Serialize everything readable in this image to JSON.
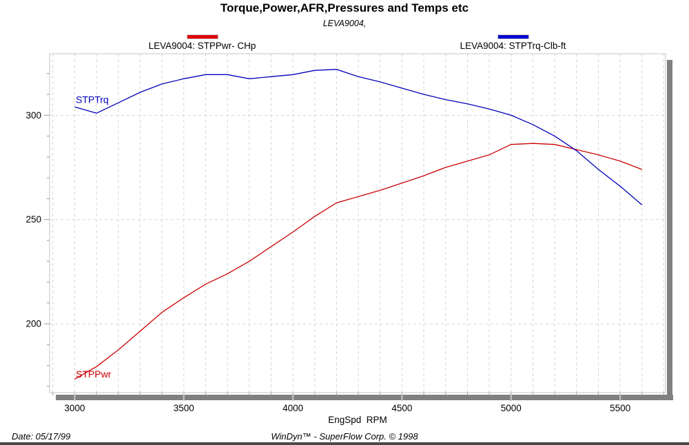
{
  "header": {
    "title": "Torque,Power,AFR,Pressures and Temps etc",
    "subtitle": "LEVA9004,"
  },
  "legend": {
    "items": [
      {
        "id": "power",
        "label": "LEVA9004: STPPwr- CHp",
        "swatch_color": "#dd0000"
      },
      {
        "id": "torque",
        "label": "LEVA9004: STPTrq-Clb-ft",
        "swatch_color": "#0000cc"
      }
    ]
  },
  "footer": {
    "date": "Date: 05/17/99",
    "brand": "WinDyn™ - SuperFlow Corp. © 1998"
  },
  "chart_data": {
    "type": "line",
    "title": "Torque,Power,AFR,Pressures and Temps etc",
    "subtitle": "LEVA9004,",
    "xlabel": "EngSpd  RPM",
    "ylabel": "",
    "x_range": [
      2885,
      5708
    ],
    "y_range": [
      167,
      329.5
    ],
    "x_major_ticks": [
      3000,
      3500,
      4000,
      4500,
      5000,
      5500
    ],
    "x_minor_step": 100,
    "y_major_ticks": [
      200,
      250,
      300
    ],
    "y_minor_step": 10,
    "grid_style": "dashed",
    "legend_position": "top",
    "colors": {
      "grid": "#d4d4d4",
      "frame": "#c4c4c4",
      "shadow": "#808080"
    },
    "x": [
      3000,
      3100,
      3200,
      3300,
      3400,
      3500,
      3600,
      3700,
      3800,
      3900,
      4000,
      4100,
      4200,
      4300,
      4400,
      4500,
      4600,
      4700,
      4800,
      4900,
      5000,
      5100,
      5200,
      5300,
      5400,
      5500,
      5600
    ],
    "series": [
      {
        "name": "LEVA9004: STPPwr- CHp",
        "short_label": "STPPwr",
        "color": "#cc0000",
        "values": [
          173.5,
          179.5,
          187.5,
          196.5,
          205.5,
          212.5,
          219,
          224,
          230,
          237,
          244,
          251.5,
          258,
          261,
          264,
          267.5,
          271,
          275,
          278,
          281,
          286,
          286.5,
          286,
          283.5,
          281,
          278,
          274
        ]
      },
      {
        "name": "LEVA9004: STPTrq-Clb-ft",
        "short_label": "STPTrq",
        "color": "#0000bb",
        "values": [
          304,
          301,
          306,
          311,
          315,
          317.5,
          319.5,
          319.5,
          317.5,
          318.5,
          319.5,
          321.5,
          322,
          318.5,
          316,
          313,
          310,
          307.5,
          305.5,
          303,
          300,
          295.5,
          290,
          283,
          274,
          266,
          257
        ]
      }
    ],
    "annotations": [
      {
        "text": "STPTrq",
        "x": 3005,
        "y": 307.5,
        "color": "#0000bb"
      },
      {
        "text": "STPPwr",
        "x": 3005,
        "y": 176,
        "color": "#cc0000"
      }
    ]
  }
}
